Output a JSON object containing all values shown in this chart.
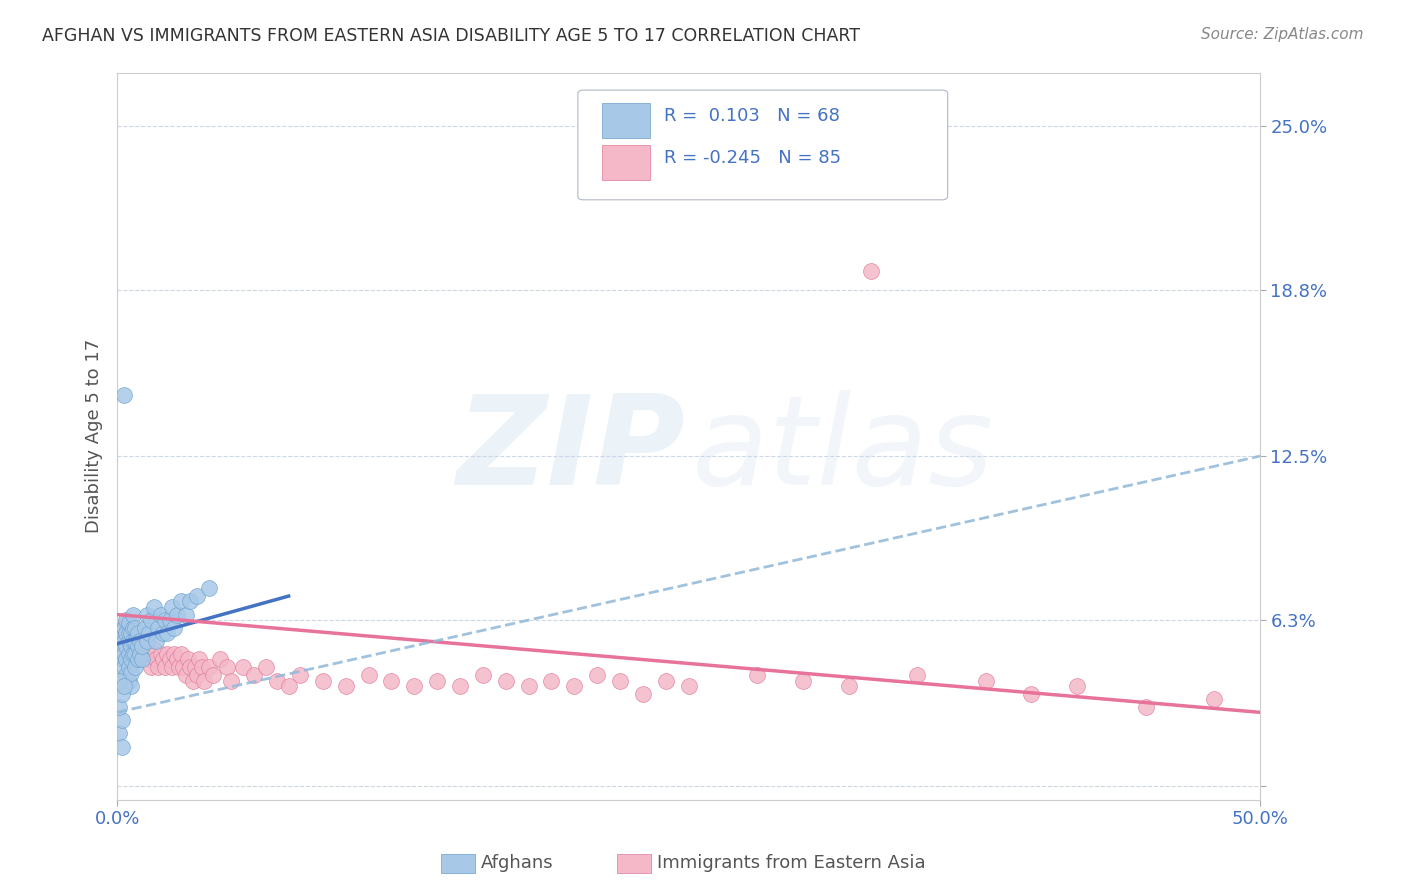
{
  "title": "AFGHAN VS IMMIGRANTS FROM EASTERN ASIA DISABILITY AGE 5 TO 17 CORRELATION CHART",
  "source": "Source: ZipAtlas.com",
  "ylabel": "Disability Age 5 to 17",
  "xlim": [
    0.0,
    0.5
  ],
  "ylim": [
    -0.005,
    0.27
  ],
  "yticks": [
    0.0,
    0.063,
    0.125,
    0.188,
    0.25
  ],
  "ytick_labels": [
    "",
    "6.3%",
    "12.5%",
    "18.8%",
    "25.0%"
  ],
  "xticks": [
    0.0,
    0.5
  ],
  "xtick_labels": [
    "0.0%",
    "50.0%"
  ],
  "afghans": {
    "scatter_color": "#a8c8e8",
    "scatter_edge": "#6aa0cc",
    "line_color": "#4472c4",
    "trend_x": [
      0.0,
      0.075
    ],
    "trend_y": [
      0.054,
      0.072
    ],
    "points": [
      [
        0.001,
        0.05
      ],
      [
        0.002,
        0.048
      ],
      [
        0.002,
        0.052
      ],
      [
        0.002,
        0.058
      ],
      [
        0.003,
        0.045
      ],
      [
        0.003,
        0.05
      ],
      [
        0.003,
        0.055
      ],
      [
        0.003,
        0.06
      ],
      [
        0.004,
        0.042
      ],
      [
        0.004,
        0.048
      ],
      [
        0.004,
        0.053
      ],
      [
        0.004,
        0.058
      ],
      [
        0.004,
        0.063
      ],
      [
        0.005,
        0.04
      ],
      [
        0.005,
        0.045
      ],
      [
        0.005,
        0.05
      ],
      [
        0.005,
        0.055
      ],
      [
        0.005,
        0.058
      ],
      [
        0.005,
        0.062
      ],
      [
        0.006,
        0.038
      ],
      [
        0.006,
        0.043
      ],
      [
        0.006,
        0.048
      ],
      [
        0.006,
        0.053
      ],
      [
        0.006,
        0.058
      ],
      [
        0.007,
        0.05
      ],
      [
        0.007,
        0.055
      ],
      [
        0.007,
        0.06
      ],
      [
        0.007,
        0.065
      ],
      [
        0.008,
        0.045
      ],
      [
        0.008,
        0.05
      ],
      [
        0.008,
        0.055
      ],
      [
        0.008,
        0.06
      ],
      [
        0.009,
        0.048
      ],
      [
        0.009,
        0.053
      ],
      [
        0.009,
        0.058
      ],
      [
        0.01,
        0.05
      ],
      [
        0.01,
        0.055
      ],
      [
        0.011,
        0.048
      ],
      [
        0.011,
        0.053
      ],
      [
        0.012,
        0.06
      ],
      [
        0.013,
        0.055
      ],
      [
        0.013,
        0.065
      ],
      [
        0.014,
        0.058
      ],
      [
        0.015,
        0.063
      ],
      [
        0.016,
        0.068
      ],
      [
        0.017,
        0.055
      ],
      [
        0.018,
        0.06
      ],
      [
        0.019,
        0.065
      ],
      [
        0.02,
        0.058
      ],
      [
        0.021,
        0.063
      ],
      [
        0.022,
        0.058
      ],
      [
        0.023,
        0.063
      ],
      [
        0.024,
        0.068
      ],
      [
        0.025,
        0.06
      ],
      [
        0.026,
        0.065
      ],
      [
        0.028,
        0.07
      ],
      [
        0.03,
        0.065
      ],
      [
        0.032,
        0.07
      ],
      [
        0.035,
        0.072
      ],
      [
        0.04,
        0.075
      ],
      [
        0.003,
        0.148
      ],
      [
        0.001,
        0.02
      ],
      [
        0.002,
        0.015
      ],
      [
        0.002,
        0.025
      ],
      [
        0.001,
        0.03
      ],
      [
        0.002,
        0.035
      ],
      [
        0.001,
        0.04
      ],
      [
        0.003,
        0.038
      ]
    ]
  },
  "eastern_asia": {
    "scatter_color": "#f4b8c8",
    "scatter_edge": "#e0789a",
    "line_color": "#e8739a",
    "trend_x": [
      0.0,
      0.5
    ],
    "trend_y": [
      0.065,
      0.028
    ],
    "dashed_trend_x": [
      0.0,
      0.5
    ],
    "dashed_trend_y": [
      0.028,
      0.125
    ],
    "points": [
      [
        0.002,
        0.058
      ],
      [
        0.003,
        0.06
      ],
      [
        0.003,
        0.055
      ],
      [
        0.004,
        0.062
      ],
      [
        0.004,
        0.058
      ],
      [
        0.005,
        0.05
      ],
      [
        0.005,
        0.055
      ],
      [
        0.005,
        0.06
      ],
      [
        0.006,
        0.048
      ],
      [
        0.006,
        0.053
      ],
      [
        0.006,
        0.058
      ],
      [
        0.007,
        0.05
      ],
      [
        0.007,
        0.055
      ],
      [
        0.007,
        0.06
      ],
      [
        0.008,
        0.052
      ],
      [
        0.008,
        0.057
      ],
      [
        0.009,
        0.05
      ],
      [
        0.009,
        0.055
      ],
      [
        0.01,
        0.048
      ],
      [
        0.01,
        0.053
      ],
      [
        0.011,
        0.05
      ],
      [
        0.012,
        0.055
      ],
      [
        0.013,
        0.05
      ],
      [
        0.014,
        0.048
      ],
      [
        0.015,
        0.05
      ],
      [
        0.015,
        0.045
      ],
      [
        0.016,
        0.052
      ],
      [
        0.017,
        0.048
      ],
      [
        0.018,
        0.045
      ],
      [
        0.019,
        0.05
      ],
      [
        0.02,
        0.048
      ],
      [
        0.021,
        0.045
      ],
      [
        0.022,
        0.05
      ],
      [
        0.023,
        0.048
      ],
      [
        0.024,
        0.045
      ],
      [
        0.025,
        0.05
      ],
      [
        0.026,
        0.048
      ],
      [
        0.027,
        0.045
      ],
      [
        0.028,
        0.05
      ],
      [
        0.029,
        0.045
      ],
      [
        0.03,
        0.042
      ],
      [
        0.031,
        0.048
      ],
      [
        0.032,
        0.045
      ],
      [
        0.033,
        0.04
      ],
      [
        0.034,
        0.045
      ],
      [
        0.035,
        0.042
      ],
      [
        0.036,
        0.048
      ],
      [
        0.037,
        0.045
      ],
      [
        0.038,
        0.04
      ],
      [
        0.04,
        0.045
      ],
      [
        0.042,
        0.042
      ],
      [
        0.045,
        0.048
      ],
      [
        0.048,
        0.045
      ],
      [
        0.05,
        0.04
      ],
      [
        0.055,
        0.045
      ],
      [
        0.06,
        0.042
      ],
      [
        0.065,
        0.045
      ],
      [
        0.07,
        0.04
      ],
      [
        0.075,
        0.038
      ],
      [
        0.08,
        0.042
      ],
      [
        0.09,
        0.04
      ],
      [
        0.1,
        0.038
      ],
      [
        0.11,
        0.042
      ],
      [
        0.12,
        0.04
      ],
      [
        0.13,
        0.038
      ],
      [
        0.14,
        0.04
      ],
      [
        0.15,
        0.038
      ],
      [
        0.16,
        0.042
      ],
      [
        0.17,
        0.04
      ],
      [
        0.18,
        0.038
      ],
      [
        0.19,
        0.04
      ],
      [
        0.2,
        0.038
      ],
      [
        0.21,
        0.042
      ],
      [
        0.22,
        0.04
      ],
      [
        0.23,
        0.035
      ],
      [
        0.24,
        0.04
      ],
      [
        0.25,
        0.038
      ],
      [
        0.28,
        0.042
      ],
      [
        0.3,
        0.04
      ],
      [
        0.32,
        0.038
      ],
      [
        0.35,
        0.042
      ],
      [
        0.38,
        0.04
      ],
      [
        0.4,
        0.035
      ],
      [
        0.42,
        0.038
      ],
      [
        0.45,
        0.03
      ],
      [
        0.48,
        0.033
      ],
      [
        0.33,
        0.195
      ]
    ]
  },
  "background_color": "#ffffff",
  "grid_color": "#c8d4e4",
  "title_color": "#333333",
  "axis_label_color": "#555555",
  "tick_color": "#4472c4"
}
